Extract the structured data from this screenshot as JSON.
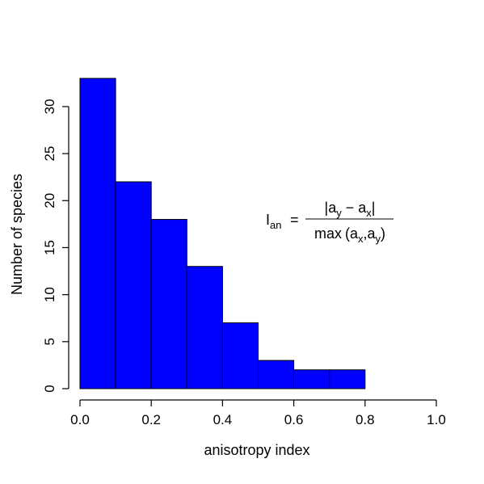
{
  "chart_data": {
    "type": "bar",
    "subtype": "histogram",
    "bins": [
      {
        "x0": 0.0,
        "x1": 0.1,
        "count": 33
      },
      {
        "x0": 0.1,
        "x1": 0.2,
        "count": 22
      },
      {
        "x0": 0.2,
        "x1": 0.3,
        "count": 18
      },
      {
        "x0": 0.3,
        "x1": 0.4,
        "count": 13
      },
      {
        "x0": 0.4,
        "x1": 0.5,
        "count": 7
      },
      {
        "x0": 0.5,
        "x1": 0.6,
        "count": 3
      },
      {
        "x0": 0.6,
        "x1": 0.7,
        "count": 2
      },
      {
        "x0": 0.7,
        "x1": 0.8,
        "count": 2
      }
    ],
    "title": "",
    "xlabel": "anisotropy index",
    "ylabel": "Number of species",
    "xlim": [
      0.0,
      1.0
    ],
    "ylim": [
      0,
      33
    ],
    "xticks": [
      "0.0",
      "0.2",
      "0.4",
      "0.6",
      "0.8",
      "1.0"
    ],
    "yticks": [
      "0",
      "5",
      "10",
      "15",
      "20",
      "25",
      "30"
    ],
    "xtick_values": [
      0.0,
      0.2,
      0.4,
      0.6,
      0.8,
      1.0
    ],
    "ytick_values": [
      0,
      5,
      10,
      15,
      20,
      25,
      30
    ],
    "grid": false,
    "bar_color": "#0000ff",
    "edge_color": "#000000",
    "annotation": {
      "lhs": "I",
      "lhs_sub": "an",
      "equals": "=",
      "numerator": {
        "bar_open": "|",
        "a1": "a",
        "a1_sub": "y",
        "minus": " − ",
        "a2": "a",
        "a2_sub": "x",
        "bar_close": "|"
      },
      "denominator": {
        "func": "max",
        "open": "(",
        "a1": "a",
        "a1_sub": "x",
        "comma": ",",
        "a2": "a",
        "a2_sub": "y",
        "close": ")"
      }
    }
  }
}
